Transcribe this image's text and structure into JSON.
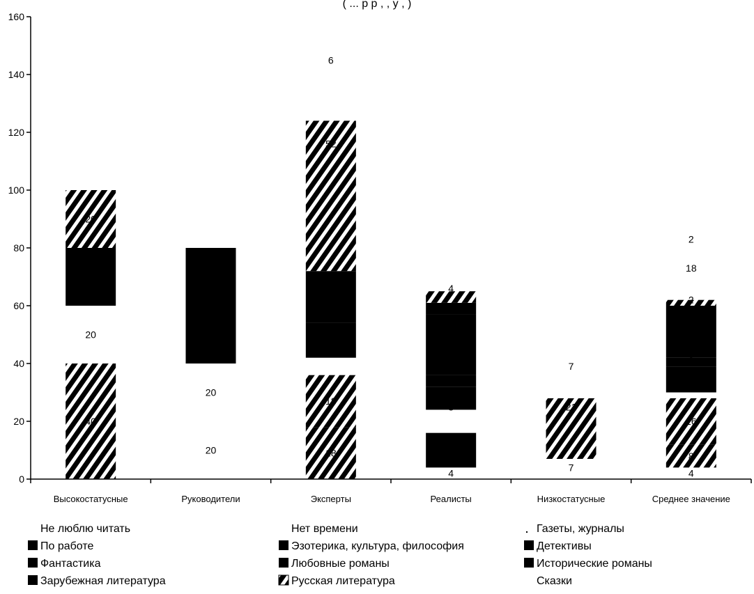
{
  "title_fragment": "(     ...     р        р         ,   ,         у          ,      )",
  "chart_data": {
    "type": "bar",
    "stacked": true,
    "ylim": [
      0,
      160
    ],
    "yticks": [
      0,
      20,
      40,
      60,
      80,
      100,
      120,
      140,
      160
    ],
    "categories": [
      "Высокостатусные",
      "Руководители",
      "Эксперты",
      "Реалисты",
      "Низкостатусные",
      "Среднее значение"
    ],
    "series": [
      {
        "name": "Не люблю читать",
        "values": [
          0,
          20,
          0,
          4,
          7,
          4
        ],
        "fill": "white"
      },
      {
        "name": "По работе",
        "values": [
          40,
          0,
          0,
          0,
          0,
          8
        ],
        "fill": "hatch"
      },
      {
        "name": "Фантастика",
        "values": [
          0,
          0,
          18,
          0,
          0,
          0
        ],
        "fill": "hatch"
      },
      {
        "name": "Зарубежная литература",
        "values": [
          0,
          0,
          0,
          12,
          0,
          0
        ],
        "fill": "black"
      },
      {
        "name": "Нет времени",
        "values": [
          0,
          20,
          0,
          8,
          0,
          0
        ],
        "fill": "white"
      },
      {
        "name": "Эзотерика, культура, философия",
        "values": [
          0,
          0,
          18,
          0,
          21,
          16
        ],
        "fill": "hatch"
      },
      {
        "name": "Любовные романы",
        "values": [
          0,
          0,
          0,
          8,
          0,
          0
        ],
        "fill": "black"
      },
      {
        "name": "Русская литература",
        "values": [
          20,
          0,
          6,
          0,
          7,
          2
        ],
        "fill": "white"
      },
      {
        "name": "Газеты, журналы",
        "values": [
          0,
          20,
          12,
          4,
          0,
          9
        ],
        "fill": "black"
      },
      {
        "name": "Детективы",
        "values": [
          0,
          20,
          18,
          21,
          0,
          3
        ],
        "fill": "black"
      },
      {
        "name": "Исторические романы",
        "values": [
          20,
          0,
          0,
          4,
          0,
          18
        ],
        "fill": "black"
      },
      {
        "name": "Сказки",
        "values": [
          20,
          0,
          52,
          4,
          0,
          2
        ],
        "fill": "hatch"
      }
    ],
    "data_labels": [
      {
        "category": 0,
        "y": 20,
        "text": "40"
      },
      {
        "category": 0,
        "y": 50,
        "text": "20"
      },
      {
        "category": 0,
        "y": 70,
        "text": "20"
      },
      {
        "category": 0,
        "y": 90,
        "text": "20"
      },
      {
        "category": 1,
        "y": 10,
        "text": "20"
      },
      {
        "category": 1,
        "y": 30,
        "text": "20"
      },
      {
        "category": 1,
        "y": 50,
        "text": "20"
      },
      {
        "category": 2,
        "y": 9,
        "text": "18"
      },
      {
        "category": 2,
        "y": 27,
        "text": "18"
      },
      {
        "category": 2,
        "y": 51,
        "text": "6"
      },
      {
        "category": 2,
        "y": 116,
        "text": "52"
      },
      {
        "category": 2,
        "y": 145,
        "text": "6"
      },
      {
        "category": 3,
        "y": 2,
        "text": "4"
      },
      {
        "category": 3,
        "y": 25,
        "text": "8"
      },
      {
        "category": 3,
        "y": 38,
        "text": "4"
      },
      {
        "category": 3,
        "y": 60,
        "text": "4"
      },
      {
        "category": 3,
        "y": 66,
        "text": "4"
      },
      {
        "category": 4,
        "y": 4,
        "text": "7"
      },
      {
        "category": 4,
        "y": 25,
        "text": "21"
      },
      {
        "category": 4,
        "y": 39,
        "text": "7"
      },
      {
        "category": 5,
        "y": 2,
        "text": "4"
      },
      {
        "category": 5,
        "y": 8,
        "text": "8"
      },
      {
        "category": 5,
        "y": 20,
        "text": "16"
      },
      {
        "category": 5,
        "y": 41,
        "text": "3"
      },
      {
        "category": 5,
        "y": 47,
        "text": "9"
      },
      {
        "category": 5,
        "y": 62,
        "text": "2"
      },
      {
        "category": 5,
        "y": 73,
        "text": "18"
      },
      {
        "category": 5,
        "y": 83,
        "text": "2"
      }
    ],
    "legend": [
      {
        "label": "Не люблю читать",
        "marker": "none"
      },
      {
        "label": "Нет времени",
        "marker": "none"
      },
      {
        "label": "Газеты, журналы",
        "marker": "dot"
      },
      {
        "label": "По работе",
        "marker": "solid"
      },
      {
        "label": "Эзотерика, культура, философия",
        "marker": "solid"
      },
      {
        "label": "Детективы",
        "marker": "solid"
      },
      {
        "label": "Фантастика",
        "marker": "solid"
      },
      {
        "label": "Любовные романы",
        "marker": "solid"
      },
      {
        "label": "Исторические романы",
        "marker": "solid"
      },
      {
        "label": "Зарубежная литература",
        "marker": "solid"
      },
      {
        "label": "Русская литература",
        "marker": "hatch"
      },
      {
        "label": "Сказки",
        "marker": "none"
      }
    ],
    "legend_position": "bottom"
  }
}
